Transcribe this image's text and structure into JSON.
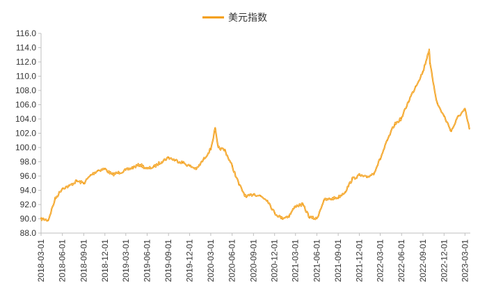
{
  "chart_data": {
    "type": "line",
    "title": "",
    "xlabel": "",
    "ylabel": "",
    "ylim": [
      88.0,
      116.0
    ],
    "y_ticks": [
      "88.0",
      "90.0",
      "92.0",
      "94.0",
      "96.0",
      "98.0",
      "100.0",
      "102.0",
      "104.0",
      "106.0",
      "108.0",
      "110.0",
      "112.0",
      "114.0",
      "116.0"
    ],
    "x_ticks": [
      "2018-03-01",
      "2018-06-01",
      "2018-09-01",
      "2018-12-01",
      "2019-03-01",
      "2019-06-01",
      "2019-09-01",
      "2019-12-01",
      "2020-03-01",
      "2020-06-01",
      "2020-09-01",
      "2020-12-01",
      "2021-03-01",
      "2021-06-01",
      "2021-09-01",
      "2021-12-01",
      "2022-03-01",
      "2022-06-01",
      "2022-09-01",
      "2022-12-01",
      "2023-03-01"
    ],
    "legend_position": "top-center",
    "grid": false,
    "series": [
      {
        "name": "美元指数",
        "color": "#F39A0C",
        "x": [
          "2018-03-01",
          "2018-04-01",
          "2018-05-01",
          "2018-06-01",
          "2018-07-01",
          "2018-08-01",
          "2018-09-01",
          "2018-10-01",
          "2018-11-01",
          "2018-12-01",
          "2019-01-01",
          "2019-02-01",
          "2019-03-01",
          "2019-04-01",
          "2019-05-01",
          "2019-06-01",
          "2019-07-01",
          "2019-08-01",
          "2019-09-01",
          "2019-10-01",
          "2019-11-01",
          "2019-12-01",
          "2020-01-01",
          "2020-02-01",
          "2020-03-01",
          "2020-03-20",
          "2020-04-01",
          "2020-05-01",
          "2020-06-01",
          "2020-07-01",
          "2020-08-01",
          "2020-09-01",
          "2020-10-01",
          "2020-11-01",
          "2020-12-01",
          "2021-01-01",
          "2021-02-01",
          "2021-03-01",
          "2021-04-01",
          "2021-05-01",
          "2021-06-01",
          "2021-07-01",
          "2021-08-01",
          "2021-09-01",
          "2021-10-01",
          "2021-11-01",
          "2021-12-01",
          "2022-01-01",
          "2022-02-01",
          "2022-03-01",
          "2022-04-01",
          "2022-05-01",
          "2022-06-01",
          "2022-07-01",
          "2022-08-01",
          "2022-09-01",
          "2022-09-28",
          "2022-10-01",
          "2022-11-01",
          "2022-12-01",
          "2023-01-01",
          "2023-02-01",
          "2023-03-01",
          "2023-03-20"
        ],
        "values": [
          90.0,
          89.8,
          92.8,
          94.3,
          94.6,
          95.3,
          95.0,
          96.1,
          96.8,
          97.0,
          96.2,
          96.5,
          96.8,
          97.2,
          97.6,
          97.0,
          97.3,
          98.0,
          98.6,
          98.2,
          97.9,
          97.4,
          97.0,
          98.4,
          99.8,
          102.6,
          100.0,
          99.6,
          97.4,
          94.8,
          93.0,
          93.5,
          93.2,
          92.6,
          90.8,
          90.1,
          90.4,
          91.8,
          92.0,
          90.2,
          90.0,
          92.6,
          92.8,
          93.0,
          93.8,
          95.6,
          96.1,
          95.8,
          96.4,
          98.4,
          101.0,
          103.2,
          104.1,
          106.5,
          108.6,
          110.6,
          113.8,
          111.8,
          106.2,
          104.4,
          102.3,
          104.4,
          105.3,
          102.6
        ]
      }
    ]
  }
}
